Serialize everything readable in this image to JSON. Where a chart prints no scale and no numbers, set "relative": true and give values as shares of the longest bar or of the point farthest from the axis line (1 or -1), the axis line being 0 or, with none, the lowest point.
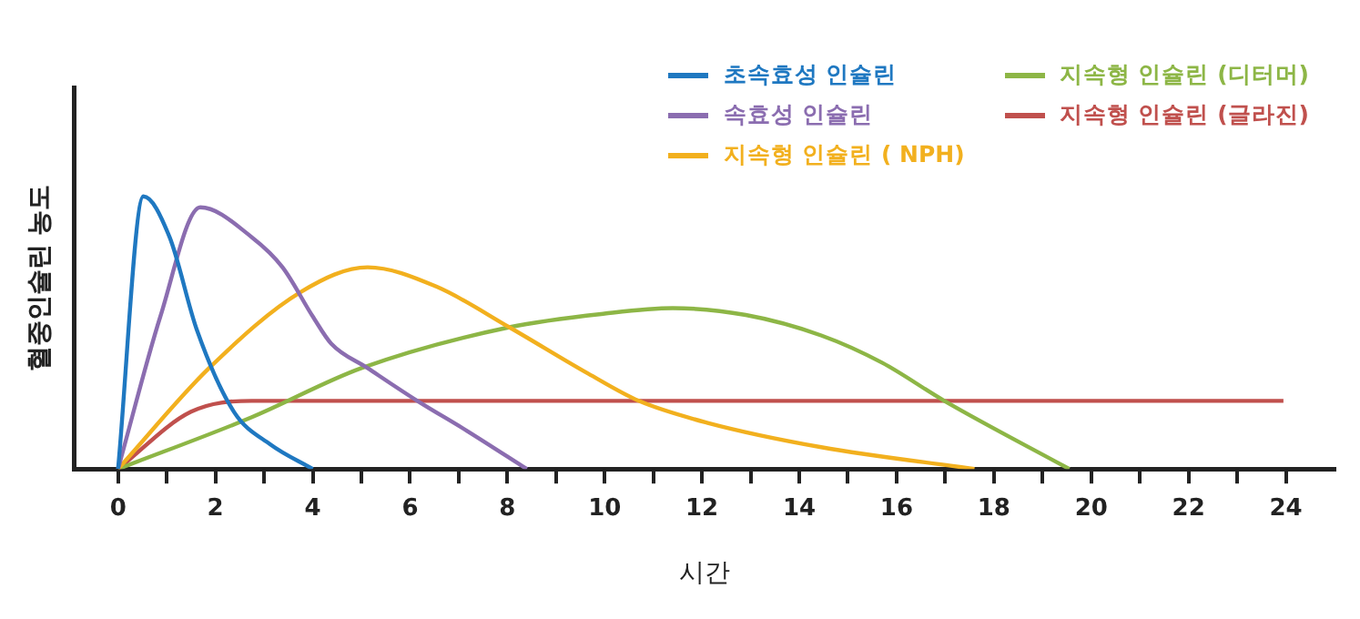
{
  "chart_data": {
    "type": "line",
    "relative": true,
    "xlabel": "시간",
    "ylabel": "혈중인슐린 농도",
    "xlim": [
      -0.9,
      25
    ],
    "xticks": [
      0,
      {
        "value": 1,
        "label": null
      },
      2,
      {
        "value": 3,
        "label": null
      },
      4,
      {
        "value": 5,
        "label": null
      },
      6,
      {
        "value": 7,
        "label": null
      },
      8,
      {
        "value": 9,
        "label": null
      },
      10,
      {
        "value": 11,
        "label": null
      },
      12,
      {
        "value": 13,
        "label": null
      },
      14,
      {
        "value": 15,
        "label": null
      },
      16,
      {
        "value": 17,
        "label": null
      },
      18,
      {
        "value": 19,
        "label": null
      },
      20,
      {
        "value": 21,
        "label": null
      },
      22,
      {
        "value": 23,
        "label": null
      },
      24
    ],
    "grid": false,
    "legend": "top right",
    "marker": "none",
    "line_style": "solid",
    "series": [
      {
        "name": "초속효성 인슐린",
        "color": "#1f78c1",
        "x": [
          0,
          0.52,
          1.06,
          1.62,
          2.38,
          3.13,
          4.0
        ],
        "values": [
          0,
          1.0,
          0.85,
          0.51,
          0.21,
          0.09,
          0
        ]
      },
      {
        "name": "속효성 인슐린",
        "color": "#8b6db0",
        "x": [
          0,
          0.87,
          1.69,
          2.75,
          3.38,
          4.0,
          4.38,
          5.13,
          6.15,
          7.17,
          8.4
        ],
        "values": [
          0,
          0.56,
          0.96,
          0.85,
          0.74,
          0.56,
          0.46,
          0.37,
          0.25,
          0.14,
          0
        ]
      },
      {
        "name": "지속형 인슐린 ( NPH)",
        "color": "#f2b01e",
        "x": [
          0,
          1.87,
          3.76,
          5.13,
          6.53,
          8.04,
          9.66,
          10.7,
          12.1,
          14.45,
          17.6
        ],
        "values": [
          0,
          0.37,
          0.65,
          0.74,
          0.67,
          0.52,
          0.35,
          0.25,
          0.17,
          0.08,
          0
        ]
      },
      {
        "name": "지속형 인슐린 (디터머)",
        "color": "#8db646",
        "x": [
          0,
          2.75,
          5.0,
          8.04,
          10.0,
          11.4,
          12.9,
          14.45,
          15.7,
          16.98,
          19.55
        ],
        "values": [
          0,
          0.19,
          0.37,
          0.52,
          0.57,
          0.59,
          0.565,
          0.49,
          0.39,
          0.25,
          0
        ]
      },
      {
        "name": "지속형 인슐린 (글라진)",
        "color": "#c0504d",
        "x": [
          0,
          1.5,
          2.75,
          23.95
        ],
        "values": [
          0,
          0.21,
          0.25,
          0.25
        ]
      }
    ]
  }
}
